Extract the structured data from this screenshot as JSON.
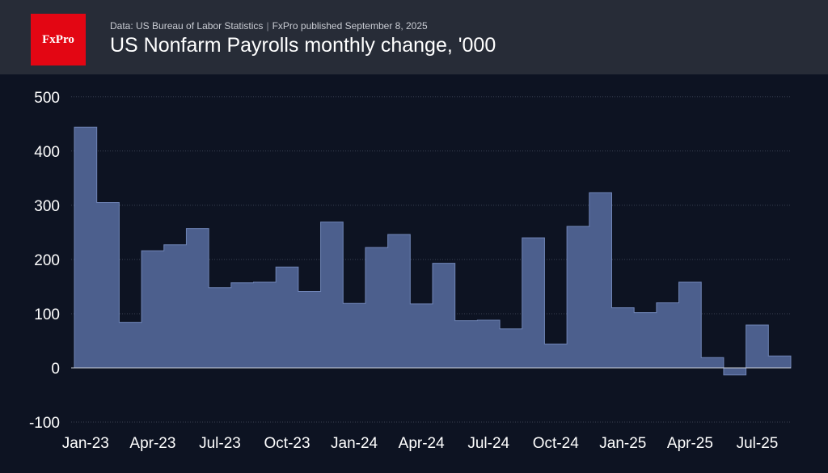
{
  "header": {
    "logo_text": "FxPro",
    "source": "Data: US Bureau of Labor Statistics",
    "separator": "|",
    "published": "FxPro published September 8, 2025",
    "title": "US Nonfarm Payrolls monthly change, '000"
  },
  "colors": {
    "background": "#0d1322",
    "header_bg": "#272c37",
    "logo_bg": "#e30613",
    "area_fill": "#4c5f8d",
    "area_stroke": "#6f84b6",
    "grid": "#3a4152",
    "text": "#ffffff"
  },
  "chart_data": {
    "type": "area",
    "style": "step",
    "title": "US Nonfarm Payrolls monthly change, '000",
    "xlabel": "",
    "ylabel": "",
    "ylim": [
      -100,
      500
    ],
    "yticks": [
      -100,
      0,
      100,
      200,
      300,
      400,
      500
    ],
    "grid": "horizontal dotted",
    "xtick_labels": [
      "Jan-23",
      "Apr-23",
      "Jul-23",
      "Oct-23",
      "Jan-24",
      "Apr-24",
      "Jul-24",
      "Oct-24",
      "Jan-25",
      "Apr-25",
      "Jul-25"
    ],
    "xtick_months": [
      "Jan-23",
      "Apr-23",
      "Jul-23",
      "Oct-23",
      "Jan-24",
      "Apr-24",
      "Jul-24",
      "Oct-24",
      "Jan-25",
      "Apr-25",
      "Jul-25"
    ],
    "months": [
      "Jan-23",
      "Feb-23",
      "Mar-23",
      "Apr-23",
      "May-23",
      "Jun-23",
      "Jul-23",
      "Aug-23",
      "Sep-23",
      "Oct-23",
      "Nov-23",
      "Dec-23",
      "Jan-24",
      "Feb-24",
      "Mar-24",
      "Apr-24",
      "May-24",
      "Jun-24",
      "Jul-24",
      "Aug-24",
      "Sep-24",
      "Oct-24",
      "Nov-24",
      "Dec-24",
      "Jan-25",
      "Feb-25",
      "Mar-25",
      "Apr-25",
      "May-25",
      "Jun-25",
      "Jul-25",
      "Aug-25"
    ],
    "values": [
      444,
      305,
      84,
      216,
      227,
      257,
      148,
      157,
      158,
      186,
      141,
      269,
      119,
      222,
      246,
      118,
      193,
      87,
      88,
      72,
      240,
      44,
      261,
      323,
      111,
      102,
      120,
      158,
      19,
      -13,
      79,
      22
    ]
  }
}
